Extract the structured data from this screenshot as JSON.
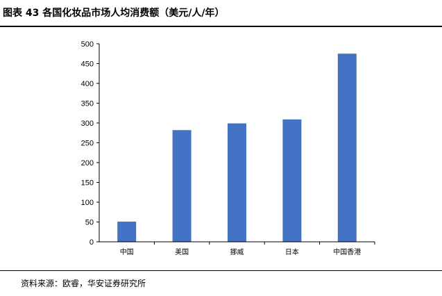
{
  "title": "图表 43  各国化妆品市场人均消费额（美元/人/年）",
  "source": "资料来源：欧睿，华安证券研究所",
  "chart_data": {
    "type": "bar",
    "categories": [
      "中国",
      "美国",
      "挪威",
      "日本",
      "中国香港"
    ],
    "values": [
      51,
      282,
      299,
      309,
      475
    ],
    "ylim": [
      0,
      500
    ],
    "yticks": [
      0,
      50,
      100,
      150,
      200,
      250,
      300,
      350,
      400,
      450,
      500
    ],
    "bar_color": "#4472C4",
    "grid": false,
    "legend": "none"
  }
}
